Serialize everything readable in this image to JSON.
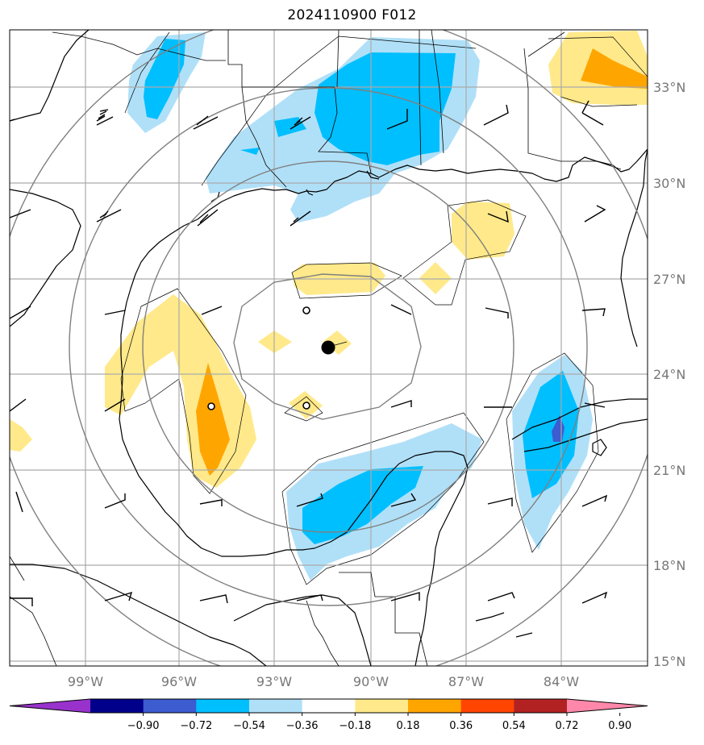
{
  "title": "2024110900 F012",
  "map": {
    "lat_labels": [
      "33°N",
      "30°N",
      "27°N",
      "24°N",
      "21°N",
      "18°N",
      "15°N"
    ],
    "lon_labels": [
      "99°W",
      "96°W",
      "93°W",
      "90°W",
      "87°W",
      "84°W"
    ],
    "center_marker": "filled-circle",
    "range_rings": 4,
    "gridlines": true
  },
  "colorbar": {
    "ticks": [
      "−0.90",
      "−0.72",
      "−0.54",
      "−0.36",
      "−0.18",
      "0.18",
      "0.36",
      "0.54",
      "0.72",
      "0.90"
    ],
    "colors": [
      "#9932cc",
      "#00008b",
      "#3c5ccf",
      "#00bfff",
      "#b0e0f8",
      "#ffffff",
      "#ffe98a",
      "#ffa500",
      "#ff4500",
      "#b22222",
      "#ff88aa"
    ]
  },
  "colors": {
    "light_blue": "#b0e0f8",
    "blue": "#00bfff",
    "dark_blue": "#3c5ccf",
    "yellow": "#ffe98a",
    "orange": "#ffa500",
    "grid": "#aaaaaa",
    "ring": "#808080"
  }
}
